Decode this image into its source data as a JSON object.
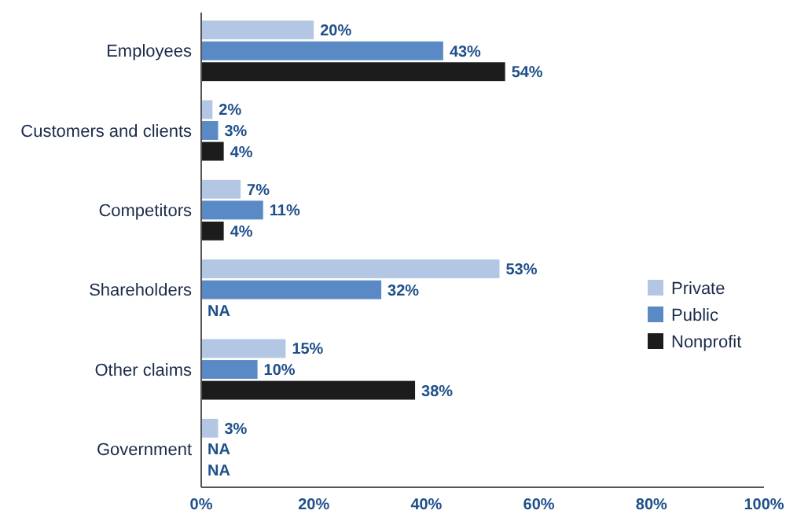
{
  "chart_data": {
    "type": "bar",
    "orientation": "horizontal",
    "categories": [
      "Employees",
      "Customers and clients",
      "Competitors",
      "Shareholders",
      "Other claims",
      "Government"
    ],
    "series": [
      {
        "name": "Private",
        "color": "#b3c6e4",
        "values": [
          20,
          2,
          7,
          53,
          15,
          3
        ],
        "value_labels": [
          "20%",
          "2%",
          "7%",
          "53%",
          "15%",
          "3%"
        ]
      },
      {
        "name": "Public",
        "color": "#5a8ac6",
        "values": [
          43,
          3,
          11,
          32,
          10,
          null
        ],
        "value_labels": [
          "43%",
          "3%",
          "11%",
          "32%",
          "10%",
          "NA"
        ]
      },
      {
        "name": "Nonprofit",
        "color": "#1c1c1c",
        "values": [
          54,
          4,
          4,
          null,
          38,
          null
        ],
        "value_labels": [
          "54%",
          "4%",
          "4%",
          "NA",
          "38%",
          "NA"
        ]
      }
    ],
    "xlim": [
      0,
      100
    ],
    "xticks": [
      {
        "value": 0,
        "label": "0%"
      },
      {
        "value": 20,
        "label": "20%"
      },
      {
        "value": 40,
        "label": "40%"
      },
      {
        "value": 60,
        "label": "60%"
      },
      {
        "value": 80,
        "label": "80%"
      },
      {
        "value": 100,
        "label": "100%"
      }
    ],
    "legend": "right",
    "grid": false
  }
}
